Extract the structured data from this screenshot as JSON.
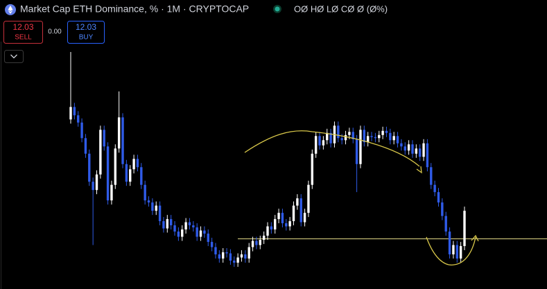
{
  "header": {
    "title": "Market Cap ETH Dominance, % · 1M · CRYPTOCAP",
    "ohlc": "OØ HØ LØ CØ Ø (Ø%)"
  },
  "trade": {
    "sell_price": "12.03",
    "sell_label": "SELL",
    "spread": "0.00",
    "buy_price": "12.03",
    "buy_label": "BUY"
  },
  "chart_data": {
    "type": "candlestick",
    "up_color": "#ffffff",
    "down_color": "#2f5be8",
    "level_color": "#e8e08a",
    "ylim": [
      5.6,
      28.3
    ],
    "open": [
      20.8,
      22.0,
      21.2,
      20.5,
      19.0,
      17.5,
      14.8,
      14.0,
      15.5,
      19.8,
      18.2,
      13.0,
      14.5,
      18.0,
      21.0,
      16.5,
      14.8,
      16.0,
      17.0,
      16.2,
      14.5,
      13.0,
      12.8,
      12.0,
      12.5,
      11.0,
      10.3,
      11.2,
      10.6,
      10.0,
      9.5,
      10.2,
      10.9,
      10.6,
      10.4,
      9.5,
      10.1,
      9.8,
      9.0,
      8.5,
      7.8,
      7.4,
      8.0,
      7.9,
      7.2,
      7.0,
      7.5,
      7.8,
      7.4,
      8.5,
      9.1,
      8.7,
      9.2,
      9.6,
      10.5,
      10.2,
      11.2,
      11.8,
      10.8,
      10.5,
      11.0,
      12.5,
      13.2,
      10.9,
      11.8,
      14.5,
      17.5,
      19.2,
      18.3,
      18.8,
      19.5,
      18.5,
      20.2,
      19.0,
      18.8,
      19.3,
      19.6,
      18.9,
      16.5,
      19.8,
      18.6,
      19.2,
      19.1,
      19.0,
      19.3,
      19.7,
      19.5,
      18.8,
      19.2,
      18.5,
      18.2,
      17.8,
      18.4,
      17.5,
      18.0,
      17.2,
      18.5,
      16.2,
      14.5,
      13.8,
      12.8,
      11.5,
      10.0,
      7.8,
      8.7,
      7.4,
      8.6
    ],
    "high": [
      27.3,
      22.4,
      21.6,
      20.9,
      19.4,
      17.9,
      15.2,
      15.9,
      20.2,
      20.2,
      18.6,
      14.9,
      18.4,
      23.5,
      21.4,
      16.9,
      16.4,
      17.4,
      17.4,
      16.6,
      14.9,
      13.4,
      13.2,
      12.9,
      12.9,
      11.4,
      11.6,
      11.6,
      11.0,
      10.4,
      10.6,
      11.3,
      11.3,
      11.0,
      10.8,
      10.5,
      10.5,
      10.2,
      9.4,
      8.9,
      8.2,
      8.4,
      8.4,
      8.3,
      7.6,
      7.9,
      8.2,
      8.2,
      8.9,
      9.5,
      9.5,
      9.6,
      10.0,
      10.9,
      10.9,
      11.6,
      12.2,
      12.2,
      11.2,
      11.4,
      12.9,
      13.6,
      13.6,
      12.2,
      14.9,
      17.9,
      19.6,
      19.6,
      19.2,
      19.9,
      19.9,
      20.6,
      20.6,
      19.4,
      19.7,
      20.0,
      20.0,
      19.3,
      20.2,
      20.2,
      19.6,
      19.6,
      19.5,
      19.7,
      20.1,
      20.1,
      19.9,
      19.6,
      19.6,
      18.9,
      18.6,
      18.8,
      18.8,
      18.4,
      18.4,
      18.9,
      18.9,
      16.6,
      14.9,
      14.2,
      13.2,
      11.9,
      10.4,
      9.1,
      9.1,
      9.0,
      12.4
    ],
    "low": [
      20.4,
      20.8,
      20.1,
      18.6,
      17.1,
      14.4,
      8.7,
      13.6,
      15.1,
      17.8,
      12.6,
      12.6,
      14.1,
      17.6,
      16.1,
      14.4,
      14.4,
      15.6,
      15.8,
      14.1,
      12.6,
      12.4,
      11.6,
      11.6,
      10.6,
      9.9,
      9.9,
      10.2,
      9.6,
      9.1,
      9.1,
      9.8,
      10.2,
      10.0,
      9.1,
      9.1,
      9.4,
      8.6,
      8.1,
      7.4,
      7.0,
      7.0,
      7.5,
      6.8,
      6.6,
      6.6,
      7.1,
      7.0,
      7.0,
      8.1,
      8.3,
      8.3,
      8.8,
      9.2,
      9.8,
      9.8,
      10.8,
      10.4,
      10.1,
      10.1,
      10.6,
      12.1,
      10.5,
      10.5,
      11.4,
      14.1,
      17.1,
      17.9,
      17.9,
      18.4,
      18.1,
      18.1,
      18.6,
      18.4,
      18.4,
      18.9,
      18.5,
      13.8,
      16.1,
      18.2,
      18.2,
      18.7,
      18.6,
      18.6,
      18.9,
      19.1,
      18.4,
      18.4,
      18.1,
      17.8,
      17.4,
      17.4,
      17.1,
      17.1,
      16.8,
      16.8,
      15.8,
      14.1,
      13.4,
      12.4,
      11.1,
      9.6,
      7.4,
      7.4,
      7.0,
      7.0,
      8.2
    ],
    "close": [
      22.0,
      21.2,
      20.5,
      19.0,
      17.5,
      14.8,
      14.0,
      15.5,
      19.8,
      18.2,
      13.0,
      14.5,
      18.0,
      21.0,
      16.5,
      14.8,
      16.0,
      17.0,
      16.2,
      14.5,
      13.0,
      12.8,
      12.0,
      12.5,
      11.0,
      10.3,
      11.2,
      10.6,
      10.0,
      9.5,
      10.2,
      10.9,
      10.6,
      10.4,
      9.5,
      10.1,
      9.8,
      9.0,
      8.5,
      7.8,
      7.4,
      8.0,
      7.9,
      7.2,
      7.0,
      7.5,
      7.8,
      7.4,
      8.5,
      9.1,
      8.7,
      9.2,
      9.6,
      10.5,
      10.2,
      11.2,
      11.8,
      10.8,
      10.5,
      11.0,
      12.5,
      13.2,
      10.9,
      11.8,
      14.5,
      17.5,
      19.2,
      18.3,
      18.8,
      19.5,
      18.5,
      20.2,
      19.0,
      18.8,
      19.3,
      19.6,
      18.9,
      16.5,
      19.8,
      18.6,
      19.2,
      19.1,
      19.0,
      19.3,
      19.7,
      19.5,
      18.8,
      19.2,
      18.5,
      18.2,
      17.8,
      18.4,
      17.5,
      18.0,
      17.2,
      18.5,
      16.2,
      14.5,
      13.8,
      12.8,
      11.5,
      10.0,
      7.8,
      8.7,
      7.4,
      8.6,
      12.0
    ],
    "level": 9.3
  }
}
